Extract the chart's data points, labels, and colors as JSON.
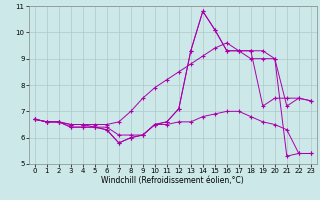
{
  "background_color": "#cce8e8",
  "grid_color": "#b0c8c8",
  "line_color": "#aa00aa",
  "xlabel": "Windchill (Refroidissement éolien,°C)",
  "xlim": [
    -0.5,
    23.5
  ],
  "ylim": [
    5,
    11
  ],
  "yticks": [
    5,
    6,
    7,
    8,
    9,
    10,
    11
  ],
  "xticks": [
    0,
    1,
    2,
    3,
    4,
    5,
    6,
    7,
    8,
    9,
    10,
    11,
    12,
    13,
    14,
    15,
    16,
    17,
    18,
    19,
    20,
    21,
    22,
    23
  ],
  "series": [
    {
      "x": [
        0,
        1,
        2,
        3,
        4,
        5,
        6,
        7,
        8,
        9,
        10,
        11,
        12,
        13,
        14,
        15,
        16,
        17,
        18,
        19,
        20,
        21,
        22,
        23
      ],
      "y": [
        6.7,
        6.6,
        6.6,
        6.5,
        6.5,
        6.5,
        6.5,
        6.6,
        7.0,
        7.5,
        7.9,
        8.2,
        8.5,
        8.8,
        9.1,
        9.4,
        9.6,
        9.3,
        9.0,
        9.0,
        9.0,
        7.2,
        7.5,
        7.4
      ]
    },
    {
      "x": [
        0,
        1,
        2,
        3,
        4,
        5,
        6,
        7,
        8,
        9,
        10,
        11,
        12,
        13,
        14,
        15,
        16,
        17,
        18,
        19,
        20,
        21,
        22,
        23
      ],
      "y": [
        6.7,
        6.6,
        6.6,
        6.4,
        6.4,
        6.4,
        6.3,
        5.8,
        6.0,
        6.1,
        6.5,
        6.6,
        7.1,
        9.3,
        10.8,
        10.1,
        9.3,
        9.3,
        9.3,
        9.3,
        9.0,
        5.3,
        5.4,
        5.4
      ]
    },
    {
      "x": [
        0,
        1,
        2,
        3,
        4,
        5,
        6,
        7,
        8,
        9,
        10,
        11,
        12,
        13,
        14,
        15,
        16,
        17,
        18,
        19,
        20,
        21,
        22,
        23
      ],
      "y": [
        6.7,
        6.6,
        6.6,
        6.4,
        6.4,
        6.4,
        6.3,
        5.8,
        6.0,
        6.1,
        6.5,
        6.6,
        7.1,
        9.3,
        10.8,
        10.1,
        9.3,
        9.3,
        9.3,
        7.2,
        7.5,
        7.5,
        7.5,
        7.4
      ]
    },
    {
      "x": [
        0,
        1,
        2,
        3,
        4,
        5,
        6,
        7,
        8,
        9,
        10,
        11,
        12,
        13,
        14,
        15,
        16,
        17,
        18,
        19,
        20,
        21,
        22,
        23
      ],
      "y": [
        6.7,
        6.6,
        6.6,
        6.5,
        6.5,
        6.4,
        6.4,
        6.1,
        6.1,
        6.1,
        6.5,
        6.5,
        6.6,
        6.6,
        6.8,
        6.9,
        7.0,
        7.0,
        6.8,
        6.6,
        6.5,
        6.3,
        5.4,
        5.4
      ]
    }
  ]
}
